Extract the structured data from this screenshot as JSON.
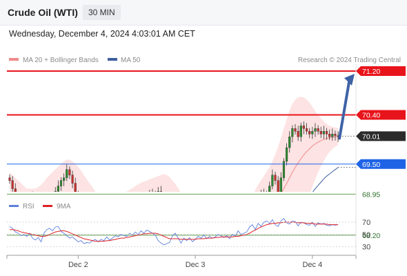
{
  "header": {
    "title": "Crude Oil (WTI)",
    "timeframe": "30 MIN"
  },
  "datetime": "Wednesday, December 4, 2024 4:03:01 AM CET",
  "legend": {
    "bollinger": "MA 20 + Bollinger Bands",
    "ma50": "MA 50",
    "copyright": "Research © 2024 Trading Central",
    "rsi": "RSI",
    "ma9": "9MA"
  },
  "colors": {
    "resistance": "#e8141b",
    "support": "#5f9e4f",
    "current": "#2b2b2b",
    "pivot": "#1f63e6",
    "bollinger_fill": "#fde3e3",
    "ma20": "#f28a8a",
    "ma50": "#3e5e9e",
    "arrow": "#3f62a6",
    "rsi": "#5c7fde",
    "ma9": "#dd1f25",
    "candle_up": "#2f8a2f",
    "candle_down": "#c9302c"
  },
  "chart_data": [
    {
      "type": "candlestick",
      "x_ticks": [
        "Dec 2",
        "Dec 3",
        "Dec 4"
      ],
      "ylim": [
        67.7,
        71.5
      ],
      "levels": [
        {
          "label": "71.20",
          "value": 71.2,
          "kind": "resistance"
        },
        {
          "label": "70.40",
          "value": 70.4,
          "kind": "resistance"
        },
        {
          "label": "70.01",
          "value": 70.01,
          "kind": "current"
        },
        {
          "label": "69.50",
          "value": 69.5,
          "kind": "pivot"
        },
        {
          "label": "68.95",
          "value": 68.95,
          "kind": "support"
        },
        {
          "label": "68.20",
          "value": 68.2,
          "kind": "support"
        }
      ],
      "close": [
        69.2,
        69.05,
        68.9,
        68.75,
        68.6,
        68.55,
        68.7,
        68.85,
        68.9,
        68.7,
        68.6,
        68.5,
        68.45,
        68.4,
        68.5,
        68.75,
        69.0,
        69.1,
        69.2,
        69.25,
        69.4,
        69.3,
        69.15,
        68.95,
        68.8,
        68.7,
        68.55,
        68.4,
        68.25,
        68.05,
        68.1,
        68.25,
        68.35,
        68.4,
        68.5,
        68.55,
        68.45,
        68.5,
        68.6,
        68.7,
        68.75,
        68.65,
        68.6,
        68.7,
        68.8,
        68.75,
        68.85,
        68.8,
        68.85,
        68.95,
        68.9,
        68.95,
        69.0,
        68.8,
        68.45,
        68.1,
        67.85,
        67.8,
        67.9,
        67.95,
        67.95,
        68.0,
        67.95,
        68.0,
        68.05,
        68.0,
        68.1,
        68.05,
        68.1,
        68.15,
        68.2,
        68.15,
        68.2,
        68.1,
        68.0,
        68.05,
        68.15,
        68.2,
        68.25,
        68.35,
        68.3,
        68.4,
        68.5,
        68.6,
        68.7,
        68.8,
        68.85,
        68.9,
        68.95,
        68.9,
        68.95,
        69.1,
        69.3,
        69.2,
        68.95,
        69.25,
        69.55,
        69.8,
        70.0,
        70.15,
        70.1,
        70.0,
        70.2,
        70.15,
        70.1,
        70.05,
        70.1,
        70.15,
        70.1,
        70.05,
        70.1,
        70.05,
        70.0,
        70.05,
        70.02,
        70.01
      ],
      "ma20": [
        68.9,
        68.88,
        68.85,
        68.82,
        68.8,
        68.78,
        68.76,
        68.74,
        68.73,
        68.72,
        68.72,
        68.73,
        68.74,
        68.75,
        68.76,
        68.78,
        68.8,
        68.82,
        68.84,
        68.86,
        68.88,
        68.89,
        68.9,
        68.88,
        68.85,
        68.82,
        68.78,
        68.74,
        68.7,
        68.65,
        68.6,
        68.56,
        68.52,
        68.49,
        68.47,
        68.46,
        68.46,
        68.47,
        68.48,
        68.5,
        68.53,
        68.56,
        68.59,
        68.62,
        68.65,
        68.68,
        68.71,
        68.74,
        68.76,
        68.79,
        68.81,
        68.83,
        68.84,
        68.82,
        68.78,
        68.72,
        68.65,
        68.58,
        68.5,
        68.43,
        68.36,
        68.3,
        68.25,
        68.2,
        68.15,
        68.11,
        68.08,
        68.06,
        68.05,
        68.05,
        68.06,
        68.07,
        68.08,
        68.1,
        68.11,
        68.12,
        68.13,
        68.14,
        68.15,
        68.17,
        68.19,
        68.22,
        68.25,
        68.29,
        68.33,
        68.38,
        68.43,
        68.48,
        68.53,
        68.58,
        68.63,
        68.68,
        68.75,
        68.82,
        68.88,
        68.96,
        69.05,
        69.15,
        69.25,
        69.35,
        69.44,
        69.52,
        69.6,
        69.67,
        69.73,
        69.78,
        69.83,
        69.87,
        69.9,
        69.93,
        69.95,
        69.97,
        69.98,
        69.99,
        70.0,
        70.0
      ],
      "ma50": [
        68.95,
        68.95,
        68.94,
        68.94,
        68.93,
        68.93,
        68.92,
        68.92,
        68.91,
        68.91,
        68.9,
        68.9,
        68.89,
        68.89,
        68.88,
        68.88,
        68.88,
        68.87,
        68.87,
        68.86,
        68.86,
        68.85,
        68.85,
        68.84,
        68.84,
        68.83,
        68.82,
        68.82,
        68.81,
        68.8,
        68.79,
        68.78,
        68.77,
        68.76,
        68.75,
        68.74,
        68.73,
        68.72,
        68.71,
        68.7,
        68.69,
        68.68,
        68.67,
        68.66,
        68.65,
        68.64,
        68.63,
        68.62,
        68.61,
        68.6,
        68.59,
        68.58,
        68.57,
        68.55,
        68.53,
        68.51,
        68.49,
        68.47,
        68.45,
        68.43,
        68.41,
        68.39,
        68.37,
        68.35,
        68.33,
        68.31,
        68.29,
        68.27,
        68.25,
        68.23,
        68.21,
        68.19,
        68.18,
        68.17,
        68.16,
        68.15,
        68.14,
        68.14,
        68.13,
        68.13,
        68.12,
        68.12,
        68.12,
        68.12,
        68.12,
        68.12,
        68.13,
        68.14,
        68.15,
        68.16,
        68.17,
        68.18,
        68.2,
        68.22,
        68.24,
        68.27,
        68.31,
        68.36,
        68.42,
        68.49,
        68.56,
        68.63,
        68.7,
        68.77,
        68.84,
        68.91,
        68.98,
        69.05,
        69.11,
        69.17,
        69.23,
        69.28,
        69.32,
        69.36,
        69.4,
        69.44
      ],
      "bb_upper": [
        69.35,
        69.3,
        69.25,
        69.2,
        69.15,
        69.1,
        69.05,
        69.05,
        69.05,
        69.05,
        69.08,
        69.12,
        69.18,
        69.25,
        69.3,
        69.35,
        69.4,
        69.45,
        69.5,
        69.55,
        69.58,
        69.58,
        69.55,
        69.5,
        69.45,
        69.38,
        69.3,
        69.22,
        69.15,
        69.08,
        69.0,
        68.95,
        68.9,
        68.87,
        68.85,
        68.85,
        68.86,
        68.88,
        68.9,
        68.93,
        68.96,
        69.0,
        69.03,
        69.06,
        69.1,
        69.13,
        69.16,
        69.18,
        69.2,
        69.22,
        69.24,
        69.26,
        69.28,
        69.3,
        69.32,
        69.3,
        69.26,
        69.2,
        69.14,
        69.06,
        68.98,
        68.9,
        68.82,
        68.74,
        68.66,
        68.58,
        68.52,
        68.47,
        68.43,
        68.4,
        68.38,
        68.37,
        68.37,
        68.38,
        68.4,
        68.42,
        68.44,
        68.46,
        68.48,
        68.52,
        68.56,
        68.62,
        68.68,
        68.76,
        68.85,
        68.94,
        69.03,
        69.12,
        69.2,
        69.28,
        69.36,
        69.44,
        69.55,
        69.68,
        69.82,
        69.98,
        70.15,
        70.32,
        70.48,
        70.6,
        70.68,
        70.72,
        70.73,
        70.72,
        70.68,
        70.62,
        70.55,
        70.47,
        70.4,
        70.34,
        70.28,
        70.23,
        70.2,
        70.18,
        70.17,
        70.16
      ],
      "bb_lower": [
        68.45,
        68.45,
        68.45,
        68.44,
        68.44,
        68.43,
        68.43,
        68.42,
        68.41,
        68.4,
        68.37,
        68.34,
        68.3,
        68.26,
        68.23,
        68.21,
        68.2,
        68.19,
        68.18,
        68.17,
        68.18,
        68.2,
        68.24,
        68.26,
        68.25,
        68.25,
        68.24,
        68.22,
        68.17,
        68.1,
        68.02,
        67.96,
        67.92,
        67.9,
        67.9,
        67.91,
        67.93,
        67.96,
        67.99,
        68.04,
        68.08,
        68.12,
        68.15,
        68.18,
        68.21,
        68.23,
        68.25,
        68.28,
        68.31,
        68.34,
        68.37,
        68.4,
        68.42,
        68.36,
        68.26,
        68.14,
        68.04,
        67.96,
        67.86,
        67.8,
        67.76,
        67.72,
        67.7,
        67.68,
        67.66,
        67.65,
        67.65,
        67.66,
        67.67,
        67.69,
        67.72,
        67.75,
        67.78,
        67.82,
        67.82,
        67.82,
        67.82,
        67.83,
        67.84,
        67.83,
        67.83,
        67.83,
        67.83,
        67.83,
        67.82,
        67.82,
        67.84,
        67.86,
        67.88,
        67.9,
        67.92,
        67.93,
        67.95,
        67.98,
        68.0,
        68.02,
        68.04,
        68.06,
        68.08,
        68.16,
        68.26,
        68.38,
        68.5,
        68.63,
        68.78,
        68.94,
        69.08,
        69.22,
        69.35,
        69.46,
        69.56,
        69.65,
        69.72,
        69.78,
        69.82,
        69.85
      ],
      "forecast": {
        "from": 70.01,
        "to": 71.2
      }
    },
    {
      "type": "line",
      "ylim": [
        20,
        80
      ],
      "y_ticks": [
        "70",
        "50",
        "30"
      ],
      "series": [
        {
          "name": "RSI",
          "values": [
            63,
            60,
            54,
            52,
            48,
            50,
            47,
            52,
            44,
            41,
            45,
            38,
            52,
            58,
            60,
            56,
            62,
            63,
            55,
            52,
            48,
            44,
            46,
            42,
            38,
            40,
            35,
            37,
            36,
            40,
            42,
            38,
            42,
            40,
            46,
            41,
            44,
            48,
            46,
            50,
            48,
            47,
            52,
            49,
            54,
            50,
            56,
            52,
            57,
            55,
            52,
            49,
            40,
            36,
            33,
            35,
            37,
            48,
            52,
            44,
            36,
            44,
            40,
            45,
            38,
            42,
            47,
            44,
            49,
            43,
            47,
            44,
            46,
            50,
            48,
            45,
            48,
            43,
            50,
            47,
            56,
            50,
            52,
            54,
            62,
            66,
            58,
            68,
            63,
            70,
            72,
            68,
            74,
            66,
            63,
            72,
            76,
            69,
            67,
            72,
            71,
            64,
            70,
            69,
            66,
            65,
            70,
            63,
            69,
            67,
            68,
            65,
            64,
            66,
            65,
            66
          ]
        },
        {
          "name": "9MA",
          "values": [
            58,
            58,
            57,
            56,
            54,
            53,
            52,
            51,
            50,
            49,
            48,
            47,
            47,
            48,
            50,
            52,
            54,
            55,
            56,
            56,
            55,
            53,
            51,
            49,
            47,
            45,
            43,
            42,
            41,
            40,
            39,
            39,
            39,
            39,
            40,
            40,
            41,
            42,
            43,
            44,
            44,
            45,
            46,
            47,
            48,
            49,
            50,
            51,
            51,
            52,
            52,
            52,
            51,
            49,
            47,
            45,
            43,
            43,
            43,
            43,
            42,
            42,
            42,
            42,
            42,
            42,
            43,
            43,
            43,
            44,
            44,
            44,
            45,
            45,
            46,
            46,
            46,
            46,
            46,
            47,
            47,
            48,
            49,
            50,
            52,
            55,
            57,
            60,
            62,
            64,
            66,
            67,
            68,
            68,
            69,
            69,
            70,
            70,
            70,
            70,
            70,
            69,
            69,
            69,
            68,
            68,
            68,
            67,
            67,
            67,
            67,
            67,
            66,
            66,
            66,
            66
          ]
        }
      ]
    }
  ]
}
